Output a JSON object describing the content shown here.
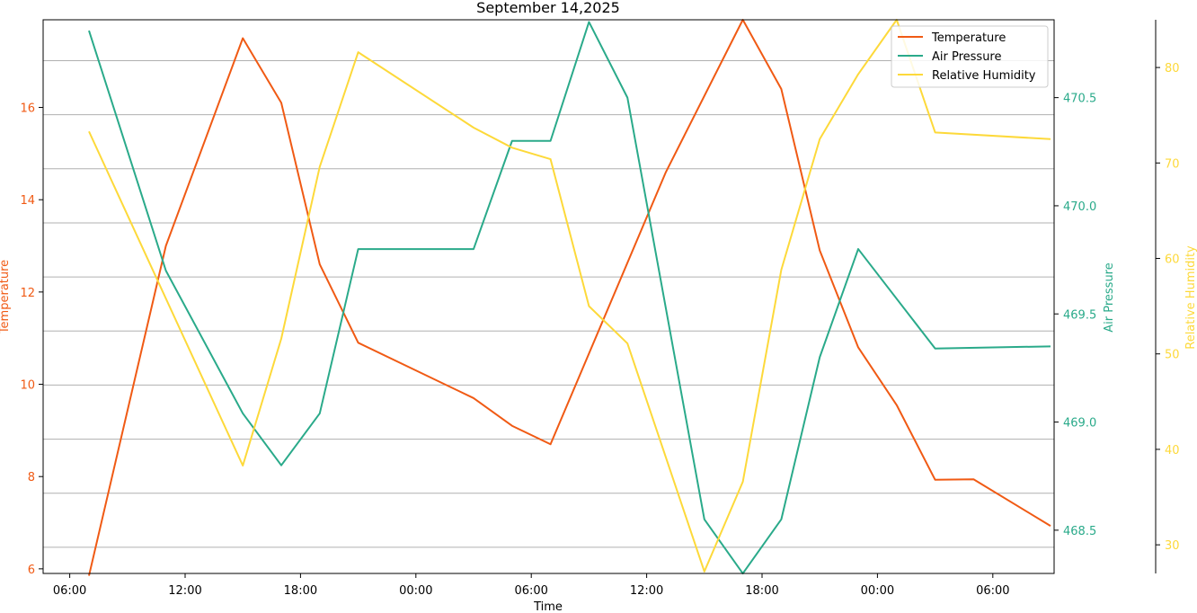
{
  "chart_data": {
    "type": "line",
    "title": "September 14,2025",
    "xlabel": "Time",
    "x_ticks": [
      "06:00",
      "12:00",
      "18:00",
      "00:00",
      "06:00",
      "12:00",
      "18:00",
      "00:00",
      "06:00"
    ],
    "x": [
      "07:00",
      "11:00",
      "15:00",
      "17:00",
      "19:00",
      "21:00",
      "03:00",
      "05:00",
      "07:00",
      "09:00",
      "11:00",
      "15:00",
      "17:00",
      "19:00",
      "21:00",
      "23:00",
      "01:00",
      "03:00",
      "07:00"
    ],
    "axes": [
      {
        "label": "Temperature",
        "color": "#f05a14",
        "ylim": [
          5.9,
          17.9
        ],
        "ticks": [
          6,
          8,
          10,
          12,
          14,
          16
        ]
      },
      {
        "label": "Air Pressure",
        "color": "#2aaa8a",
        "ylim": [
          468.3,
          470.86
        ],
        "ticks": [
          "468.5",
          "469.0",
          "469.5",
          "470.0",
          "470.5"
        ]
      },
      {
        "label": "Relative Humidity",
        "color": "#fdd93a",
        "ylim": [
          27,
          85
        ],
        "ticks": [
          30,
          40,
          50,
          60,
          70,
          80
        ]
      }
    ],
    "grid": true,
    "legend_position": "top-right",
    "series": [
      {
        "name": "Temperature",
        "color": "#f05a14",
        "axis": 0,
        "points": [
          [
            0,
            5.85
          ],
          [
            4,
            13.0
          ],
          [
            8,
            17.5
          ],
          [
            10,
            16.1
          ],
          [
            12,
            12.6
          ],
          [
            14,
            10.9
          ],
          [
            20,
            9.7
          ],
          [
            22,
            9.1
          ],
          [
            24,
            8.7
          ],
          [
            30,
            14.6
          ],
          [
            34,
            17.9
          ],
          [
            36,
            16.4
          ],
          [
            38,
            12.9
          ],
          [
            40,
            10.8
          ],
          [
            42,
            9.55
          ],
          [
            44,
            7.93
          ],
          [
            46,
            7.94
          ],
          [
            50,
            6.93
          ]
        ]
      },
      {
        "name": "Air Pressure",
        "color": "#2aaa8a",
        "axis": 1,
        "points": [
          [
            0,
            470.81
          ],
          [
            4,
            469.7
          ],
          [
            8,
            469.04
          ],
          [
            10,
            468.8
          ],
          [
            12,
            469.04
          ],
          [
            14,
            469.8
          ],
          [
            20,
            469.8
          ],
          [
            22,
            470.3
          ],
          [
            24,
            470.3
          ],
          [
            26,
            470.85
          ],
          [
            28,
            470.5
          ],
          [
            32,
            468.55
          ],
          [
            34,
            468.3
          ],
          [
            36,
            468.55
          ],
          [
            38,
            469.3
          ],
          [
            40,
            469.8
          ],
          [
            44,
            469.34
          ],
          [
            50,
            469.35
          ]
        ]
      },
      {
        "name": "Relative Humidity",
        "color": "#fdd93a",
        "axis": 2,
        "points": [
          [
            0,
            73.3
          ],
          [
            8,
            38.3
          ],
          [
            10,
            51.6
          ],
          [
            12,
            69.6
          ],
          [
            14,
            81.6
          ],
          [
            20,
            73.7
          ],
          [
            22,
            71.6
          ],
          [
            24,
            70.4
          ],
          [
            26,
            55.0
          ],
          [
            28,
            51.1
          ],
          [
            32,
            27.2
          ],
          [
            34,
            36.6
          ],
          [
            36,
            58.8
          ],
          [
            38,
            72.5
          ],
          [
            40,
            79.3
          ],
          [
            42,
            85.0
          ],
          [
            44,
            73.2
          ],
          [
            50,
            72.5
          ]
        ]
      }
    ]
  }
}
